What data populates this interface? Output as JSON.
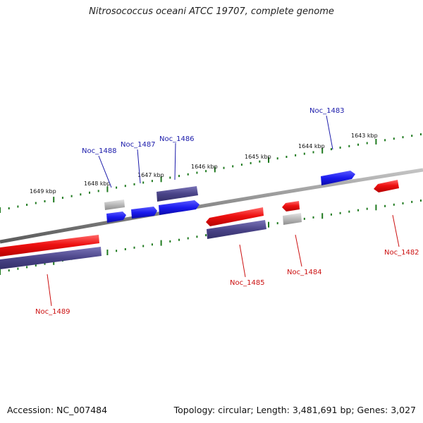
{
  "title": "Nitrosococcus oceani ATCC 19707, complete genome",
  "footer": {
    "accession": "Accession: NC_007484",
    "info": "Topology: circular; Length: 3,481,691 bp; Genes: 3,027"
  },
  "colors": {
    "backbone": "#8a8a8a",
    "tick": "#1f7a1f",
    "cds": "#ee1111",
    "gene": "#4a4488",
    "cds_forward": "#1a1aee",
    "pseudo": "#b8b8b8",
    "label_forward": "#1a1aaa",
    "label_reverse": "#cc1111"
  },
  "scale_labels": [
    "1649 kbp",
    "1648 kbp",
    "1647 kbp",
    "1646 kbp",
    "1645 kbp",
    "1644 kbp",
    "1643 kbp"
  ],
  "gene_labels": {
    "forward": [
      "Noc_1488",
      "Noc_1487",
      "Noc_1486",
      "Noc_1483"
    ],
    "reverse": [
      "Noc_1489",
      "Noc_1485",
      "Noc_1484",
      "Noc_1482"
    ]
  }
}
